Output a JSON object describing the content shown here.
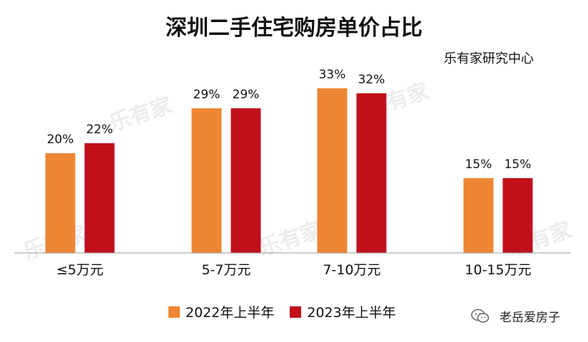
{
  "title": "深圳二手住宅购房单价占比",
  "source_label": "乐有家研究中心",
  "watermark_text": "乐有家",
  "footer_label": "老岳爱房子",
  "colors": {
    "y2022": "#EE8633",
    "y2023": "#C0111B",
    "axis": "#999999"
  },
  "chart_data": {
    "type": "bar",
    "title": "深圳二手住宅购房单价占比",
    "categories": [
      "≤5万元",
      "5-7万元",
      "7-10万元",
      "10-15万元"
    ],
    "series": [
      {
        "name": "2022年上半年",
        "values": [
          20,
          29,
          33,
          15
        ],
        "labels": [
          "20%",
          "29%",
          "33%",
          "15%"
        ]
      },
      {
        "name": "2023年上半年",
        "values": [
          22,
          29,
          32,
          15
        ],
        "labels": [
          "22%",
          "29%",
          "32%",
          "15%"
        ]
      }
    ],
    "unit": "%",
    "ylim": [
      0,
      40
    ],
    "grid": false,
    "legend_position": "bottom"
  }
}
